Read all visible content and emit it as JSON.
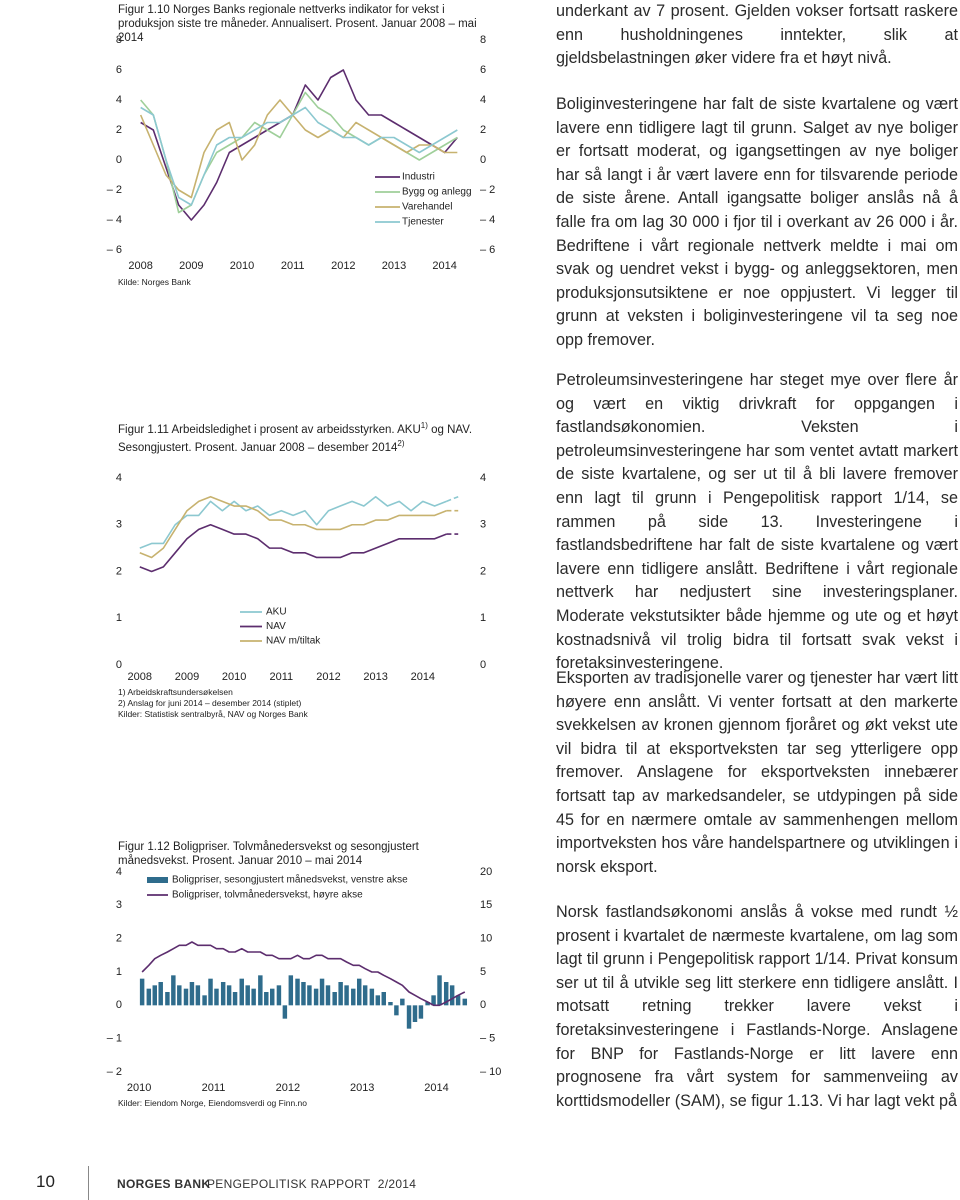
{
  "chart_data": [
    {
      "type": "line",
      "title": "Figur 1.10 Norges Banks regionale nettverks indikator for vekst i produksjon siste tre måneder. Annualisert. Prosent. Januar 2008 – mai 2014",
      "source": "Kilde: Norges Bank",
      "x": [
        2008,
        2008.25,
        2008.5,
        2008.75,
        2009,
        2009.25,
        2009.5,
        2009.75,
        2010,
        2010.25,
        2010.5,
        2010.75,
        2011,
        2011.25,
        2011.5,
        2011.75,
        2012,
        2012.25,
        2012.5,
        2012.75,
        2013,
        2013.25,
        2013.5,
        2013.75,
        2014,
        2014.25
      ],
      "xlim": [
        2007.75,
        2014.5
      ],
      "xticks": [
        2008,
        2009,
        2010,
        2011,
        2012,
        2013,
        2014
      ],
      "ylim": [
        -6,
        8
      ],
      "yticks": [
        8,
        6,
        4,
        2,
        0,
        {
          "value": -2,
          "label": "– 2"
        },
        {
          "value": -4,
          "label": "– 4"
        },
        {
          "value": -6,
          "label": "– 6"
        }
      ],
      "y2lim": [
        -6,
        8
      ],
      "y2ticks": [
        8,
        6,
        4,
        2,
        0,
        {
          "value": -2,
          "label": "– 2"
        },
        {
          "value": -4,
          "label": "– 4"
        },
        {
          "value": -6,
          "label": "– 6"
        }
      ],
      "series": [
        {
          "name": "Industri",
          "color": "#5c2d6e",
          "values": [
            2.5,
            2,
            -0.5,
            -3,
            -4,
            -3,
            -1.5,
            0.5,
            1,
            1.5,
            2,
            2.5,
            3,
            5,
            4,
            5.5,
            6,
            4,
            3,
            3,
            2.5,
            2,
            1.5,
            1,
            0.5,
            1.5
          ]
        },
        {
          "name": "Bygg og anlegg",
          "color": "#9fcf9a",
          "values": [
            4,
            3,
            0,
            -3.5,
            -3,
            -1,
            0.5,
            1,
            1.5,
            2.5,
            2,
            1.5,
            3,
            4.5,
            3.5,
            3,
            2,
            1.5,
            1,
            1.5,
            1,
            0.5,
            0,
            0.5,
            1,
            1.5
          ]
        },
        {
          "name": "Varehandel",
          "color": "#c7b26f",
          "values": [
            3,
            1,
            -1,
            -2,
            -2.5,
            0.5,
            2,
            2.5,
            0,
            1,
            3,
            4,
            3,
            2,
            1.5,
            2,
            1.5,
            2.5,
            2,
            1.5,
            1,
            0.5,
            1,
            1,
            0.5,
            0.5
          ]
        },
        {
          "name": "Tjenester",
          "color": "#8cc8d0",
          "values": [
            3.5,
            3,
            0,
            -2.5,
            -3,
            -1,
            1,
            1.5,
            1.5,
            2,
            2.5,
            2.5,
            3,
            3.5,
            2.5,
            2,
            1.5,
            1.5,
            1,
            1.5,
            1.5,
            1,
            0.5,
            1,
            1.5,
            2
          ]
        }
      ]
    },
    {
      "type": "line",
      "title": "Figur 1.11 Arbeidsledighet i prosent av arbeidsstyrken. AKU",
      "title_sup": "1)",
      "title_cont": "og NAV. Sesongjustert. Prosent. Januar 2008 – desember 2014",
      "title_sup2": "2)",
      "notes": [
        "1) Arbeidskraftsundersøkelsen",
        "2) Anslag for juni 2014 – desember 2014 (stiplet)"
      ],
      "source": "Kilder: Statistisk sentralbyrå, NAV og Norges Bank",
      "forecast_from": 2014.5,
      "x": [
        2008,
        2008.25,
        2008.5,
        2008.75,
        2009,
        2009.25,
        2009.5,
        2009.75,
        2010,
        2010.25,
        2010.5,
        2010.75,
        2011,
        2011.25,
        2011.5,
        2011.75,
        2012,
        2012.25,
        2012.5,
        2012.75,
        2013,
        2013.25,
        2013.5,
        2013.75,
        2014,
        2014.25,
        2014.5,
        2014.75
      ],
      "xlim": [
        2007.75,
        2015
      ],
      "xticks": [
        2008,
        2009,
        2010,
        2011,
        2012,
        2013,
        2014
      ],
      "ylim": [
        0,
        4
      ],
      "yticks": [
        4,
        3,
        2,
        1,
        0
      ],
      "y2lim": [
        0,
        4
      ],
      "y2ticks": [
        4,
        3,
        2,
        1,
        0
      ],
      "series": [
        {
          "name": "AKU",
          "color": "#8cc8d0",
          "values": [
            2.5,
            2.6,
            2.6,
            3.0,
            3.2,
            3.2,
            3.5,
            3.3,
            3.5,
            3.3,
            3.4,
            3.2,
            3.3,
            3.2,
            3.3,
            3.0,
            3.3,
            3.4,
            3.5,
            3.4,
            3.6,
            3.4,
            3.5,
            3.3,
            3.5,
            3.4,
            3.5,
            3.6
          ]
        },
        {
          "name": "NAV",
          "color": "#5c2d6e",
          "values": [
            2.1,
            2.0,
            2.1,
            2.4,
            2.7,
            2.9,
            3.0,
            2.9,
            2.8,
            2.8,
            2.7,
            2.5,
            2.5,
            2.4,
            2.4,
            2.3,
            2.3,
            2.3,
            2.4,
            2.4,
            2.5,
            2.6,
            2.7,
            2.7,
            2.7,
            2.7,
            2.8,
            2.8
          ]
        },
        {
          "name": "NAV m/tiltak",
          "color": "#c7b26f",
          "values": [
            2.4,
            2.3,
            2.5,
            2.9,
            3.3,
            3.5,
            3.6,
            3.5,
            3.4,
            3.4,
            3.3,
            3.1,
            3.1,
            3.0,
            3.0,
            2.9,
            2.9,
            2.9,
            3.0,
            3.0,
            3.1,
            3.1,
            3.2,
            3.2,
            3.2,
            3.2,
            3.3,
            3.3
          ]
        }
      ]
    },
    {
      "type": "bar",
      "title": "Figur 1.12 Boligpriser. Tolvmånedersvekst og sesongjustert månedsvekst. Prosent. Januar 2010 – mai 2014",
      "source": "Kilder: Eiendom Norge, Eiendomsverdi og Finn.no",
      "x": [
        2010.04,
        2010.13,
        2010.21,
        2010.29,
        2010.38,
        2010.46,
        2010.54,
        2010.63,
        2010.71,
        2010.79,
        2010.88,
        2010.96,
        2011.04,
        2011.13,
        2011.21,
        2011.29,
        2011.38,
        2011.46,
        2011.54,
        2011.63,
        2011.71,
        2011.79,
        2011.88,
        2011.96,
        2012.04,
        2012.13,
        2012.21,
        2012.29,
        2012.38,
        2012.46,
        2012.54,
        2012.63,
        2012.71,
        2012.79,
        2012.88,
        2012.96,
        2013.04,
        2013.13,
        2013.21,
        2013.29,
        2013.38,
        2013.46,
        2013.54,
        2013.63,
        2013.71,
        2013.79,
        2013.88,
        2013.96,
        2014.04,
        2014.13,
        2014.21,
        2014.29,
        2014.38
      ],
      "xlim": [
        2009.85,
        2014.45
      ],
      "xticks": [
        2010,
        2011,
        2012,
        2013,
        2014
      ],
      "ylim": [
        -2,
        4
      ],
      "yticks": [
        4,
        3,
        2,
        1,
        0,
        {
          "value": -1,
          "label": "– 1"
        },
        {
          "value": -2,
          "label": "– 2"
        }
      ],
      "y2lim": [
        -10,
        20
      ],
      "y2ticks": [
        20,
        15,
        10,
        5,
        0,
        {
          "value": -5,
          "label": "– 5"
        },
        {
          "value": -10,
          "label": "– 10"
        }
      ],
      "series": [
        {
          "name": "Boligpriser, sesongjustert månedsvekst, venstre akse",
          "type": "bar",
          "color": "#2f6c8c",
          "values": [
            0.8,
            0.5,
            0.6,
            0.7,
            0.4,
            0.9,
            0.6,
            0.5,
            0.7,
            0.6,
            0.3,
            0.8,
            0.5,
            0.7,
            0.6,
            0.4,
            0.8,
            0.6,
            0.5,
            0.9,
            0.4,
            0.5,
            0.6,
            -0.4,
            0.9,
            0.8,
            0.7,
            0.6,
            0.5,
            0.8,
            0.6,
            0.4,
            0.7,
            0.6,
            0.5,
            0.8,
            0.6,
            0.5,
            0.3,
            0.4,
            0.1,
            -0.3,
            0.2,
            -0.7,
            -0.5,
            -0.4,
            0.1,
            0.3,
            0.9,
            0.7,
            0.6,
            0.3,
            0.2
          ]
        },
        {
          "name": "Boligpriser, tolvmånedersvekst, høyre akse",
          "type": "line",
          "axis": "y2",
          "color": "#5c2d6e",
          "values": [
            5,
            6,
            7,
            7.5,
            8,
            8.5,
            9,
            9,
            9.5,
            9,
            9,
            9,
            8.5,
            8.5,
            8,
            8,
            8.5,
            8,
            8,
            8,
            7.5,
            7.5,
            7,
            7,
            7,
            7.5,
            7,
            7,
            7.5,
            7.5,
            7,
            7,
            7,
            6.5,
            6,
            6,
            5.5,
            5,
            5,
            4.5,
            4,
            3.5,
            3,
            2,
            1.5,
            1,
            0.5,
            0,
            0,
            0.5,
            1,
            1.5,
            2
          ]
        }
      ]
    }
  ],
  "text": {
    "paragraphs": [
      "underkant av 7 prosent. Gjelden vokser fortsatt raskere enn husholdningenes inntekter, slik at gjeldsbelastningen øker videre fra et høyt nivå.",
      "Boliginvesteringene har falt de siste kvartalene og vært lavere enn tidligere lagt til grunn. Salget av nye boliger er fortsatt moderat, og igangsettingen av nye boliger har så langt i år vært lavere enn for tilsvarende periode de siste årene. Antall igangsatte boliger anslås nå å falle fra om lag 30 000 i fjor til i overkant av 26 000 i år. Bedriftene i vårt regionale nettverk meldte i mai om svak og uendret vekst i bygg- og anleggsektoren, men produksjonsutsiktene er noe oppjustert. Vi legger til grunn at veksten i boliginvesteringene vil ta seg noe opp fremover.",
      "Petroleumsinvesteringene har steget mye over flere år og vært en viktig drivkraft for oppgangen i fastlandsøkonomien. Veksten i petroleumsinvesteringene har som ventet avtatt markert de siste kvartalene, og ser ut til å bli lavere fremover enn lagt til grunn i Pengepolitisk rapport 1/14, se rammen på side 13. Investeringene i fastlandsbedriftene har falt de siste kvartalene og vært lavere enn tidligere anslått. Bedriftene i vårt regionale nettverk har nedjustert sine investeringsplaner. Moderate vekstutsikter både hjemme og ute og et høyt kostnadsnivå vil trolig bidra til fortsatt svak vekst i foretaksinvesteringene.",
      "Eksporten av tradisjonelle varer og tjenester har vært litt høyere enn anslått. Vi venter fortsatt at den markerte svekkelsen av kronen gjennom fjoråret og økt vekst ute vil bidra til at eksportveksten tar seg ytterligere opp fremover. Anslagene for eksportveksten innebærer fortsatt tap av markedsandeler, se utdypingen på side 45 for en nærmere omtale av sammenhengen mellom importveksten hos våre handelspartnere og utviklingen i norsk eksport.",
      "Norsk fastlandsøkonomi anslås å vokse med rundt ½ prosent i kvartalet de nærmeste kvartalene, om lag som lagt til grunn i Pengepolitisk rapport 1/14. Privat konsum ser ut til å utvikle seg litt sterkere enn tidligere anslått. I motsatt retning trekker lavere vekst i foretaksinvesteringene i Fastlands-Norge. Anslagene for BNP for Fastlands-Norge er litt lavere enn prognosene fra vårt system for sammenveiing av korttidsmodeller (SAM), se figur 1.13. Vi har lagt vekt på"
    ]
  },
  "footer": {
    "page": "10",
    "brand": "NORGES BANK",
    "report": "PENGEPOLITISK RAPPORT",
    "issue": "2/2014"
  }
}
